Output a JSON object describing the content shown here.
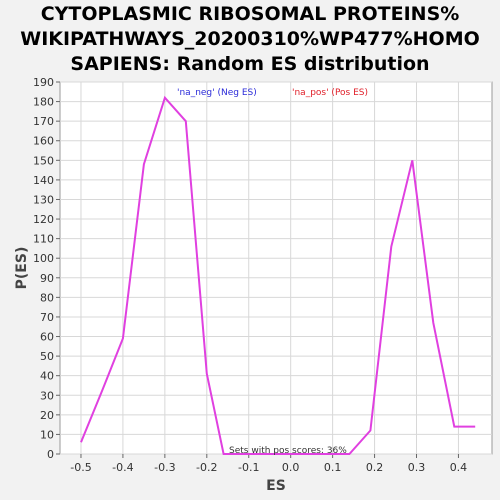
{
  "title_lines": [
    "CYTOPLASMIC RIBOSOMAL PROTEINS%",
    "WIKIPATHWAYS_20200310%WP477%HOMO",
    "SAPIENS: Random ES distribution"
  ],
  "chart_data": {
    "type": "line",
    "title": "CYTOPLASMIC RIBOSOMAL PROTEINS% WIKIPATHWAYS_20200310%WP477%HOMO SAPIENS: Random ES distribution",
    "xlabel": "ES",
    "ylabel": "P(ES)",
    "xlim": [
      -0.55,
      0.48
    ],
    "ylim": [
      0,
      190
    ],
    "xticks": [
      -0.5,
      -0.4,
      -0.3,
      -0.2,
      -0.1,
      0.0,
      0.1,
      0.2,
      0.3,
      0.4
    ],
    "xtick_labels": [
      "-0.5",
      "-0.4",
      "-0.3",
      "-0.2",
      "-0.1",
      "0.0",
      "0.1",
      "0.2",
      "0.3",
      "0.4"
    ],
    "yticks": [
      0,
      10,
      20,
      30,
      40,
      50,
      60,
      70,
      80,
      90,
      100,
      110,
      120,
      130,
      140,
      150,
      160,
      170,
      180,
      190
    ],
    "ytick_labels": [
      "0",
      "10",
      "20",
      "30",
      "40",
      "50",
      "60",
      "70",
      "80",
      "90",
      "100",
      "110",
      "120",
      "130",
      "140",
      "150",
      "160",
      "170",
      "180",
      "190"
    ],
    "grid": true,
    "legend": [
      {
        "label": "'na_neg' (Neg ES)",
        "color": "#2b2bd9"
      },
      {
        "label": "'na_pos' (Pos ES)",
        "color": "#e0202a"
      }
    ],
    "legend_placement": "top",
    "annotation": "Sets with pos scores: 36%",
    "line_color": "#e040e0",
    "series": [
      {
        "x": [
          -0.5,
          -0.45,
          -0.4,
          -0.35,
          -0.3,
          -0.25,
          -0.2,
          -0.16,
          -0.1,
          0.0,
          0.14,
          0.19,
          0.24,
          0.29,
          0.34,
          0.39,
          0.44
        ],
        "y": [
          6,
          32,
          59,
          148,
          182,
          170,
          41,
          0,
          0,
          0,
          0,
          12,
          106,
          150,
          67,
          14,
          14
        ]
      }
    ]
  }
}
